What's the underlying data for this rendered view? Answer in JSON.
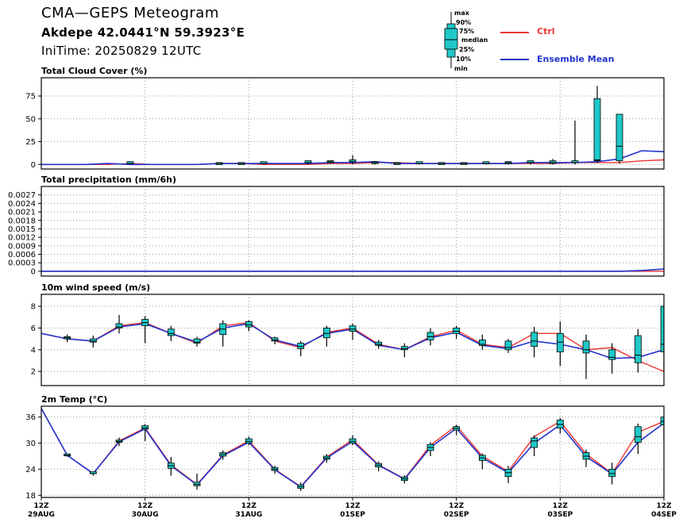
{
  "header": {
    "title": "CMA—GEPS Meteogram",
    "location": "Akdepe 42.0441°N 59.3923°E",
    "init_time": "IniTime: 20250829 12UTC"
  },
  "legend": {
    "box_labels": [
      "max",
      "90%",
      "75%",
      "median",
      "25%",
      "10%",
      "min"
    ],
    "series": [
      {
        "name": "Ctrl",
        "color": "#ee3333"
      },
      {
        "name": "Ensemble Mean",
        "color": "#2233cc"
      }
    ]
  },
  "colors": {
    "box_fill": "#20c8c8",
    "ctrl": "#ee3333",
    "mean": "#2233cc",
    "grid": "#999999"
  },
  "chart_data": [
    {
      "type": "line",
      "title": "Total Cloud Cover (%)",
      "xlabel": "",
      "ylabel": "",
      "ylim": [
        -5,
        95
      ],
      "yticks": [
        0,
        25,
        50,
        75
      ],
      "ytick_labels": [
        "0",
        "25",
        "50",
        "75"
      ],
      "grid": true,
      "ctrl": [
        0,
        0,
        0,
        0,
        1,
        0,
        0,
        0,
        1,
        1,
        0,
        0,
        0,
        1,
        1,
        2,
        2,
        1,
        1,
        1,
        1,
        1,
        1,
        1,
        2,
        2,
        2,
        4,
        5
      ],
      "mean": [
        0,
        0,
        0,
        1,
        0,
        0,
        0,
        0,
        1,
        1,
        1,
        1,
        1,
        2,
        2,
        3,
        1,
        1,
        1,
        1,
        1,
        1,
        2,
        2,
        2,
        3,
        6,
        15,
        14
      ],
      "boxes": [
        [
          4,
          0,
          0,
          1,
          1,
          2,
          2
        ],
        [
          8,
          0,
          0,
          0,
          1,
          1,
          2
        ],
        [
          9,
          0,
          0,
          0,
          1,
          1,
          2
        ],
        [
          10,
          0,
          0,
          1,
          1,
          2,
          2
        ],
        [
          12,
          0,
          1,
          1,
          2,
          3,
          4
        ],
        [
          13,
          1,
          1,
          2,
          3,
          3,
          4
        ],
        [
          14,
          0,
          1,
          2,
          3,
          4,
          10
        ],
        [
          15,
          0,
          1,
          1,
          2,
          2,
          3
        ],
        [
          16,
          0,
          0,
          0,
          1,
          1,
          2
        ],
        [
          17,
          0,
          0,
          1,
          1,
          2,
          3
        ],
        [
          18,
          0,
          0,
          0,
          1,
          1,
          2
        ],
        [
          19,
          0,
          0,
          0,
          1,
          1,
          2
        ],
        [
          20,
          0,
          0,
          1,
          1,
          2,
          3
        ],
        [
          21,
          0,
          0,
          1,
          2,
          2,
          3
        ],
        [
          22,
          0,
          0,
          1,
          2,
          3,
          4
        ],
        [
          23,
          0,
          1,
          1,
          2,
          4,
          6
        ],
        [
          24,
          0,
          0,
          1,
          2,
          3,
          48
        ],
        [
          25,
          2,
          3,
          4,
          5,
          72,
          86
        ],
        [
          26,
          1,
          2,
          4,
          20,
          55,
          55
        ]
      ]
    },
    {
      "type": "line",
      "title": "Total precipitation (mm/6h)",
      "xlabel": "",
      "ylabel": "",
      "ylim": [
        -0.00017,
        0.003
      ],
      "yticks": [
        0,
        0.0003,
        0.0006,
        0.0009,
        0.0012,
        0.0015,
        0.0018,
        0.0021,
        0.0024,
        0.0027
      ],
      "ytick_labels": [
        "0",
        "0.0003",
        "0.0006",
        "0.0009",
        "0.0012",
        "0.0015",
        "0.0018",
        "0.0021",
        "0.0024",
        "0.0027"
      ],
      "grid": true,
      "ctrl": [
        0,
        0,
        0,
        0,
        0,
        0,
        0,
        0,
        0,
        0,
        0,
        0,
        0,
        0,
        0,
        0,
        0,
        0,
        0,
        0,
        0,
        0,
        0,
        0,
        0,
        0,
        0,
        0,
        0
      ],
      "mean": [
        0,
        0,
        0,
        0,
        0,
        0,
        0,
        0,
        0,
        0,
        0,
        0,
        0,
        0,
        0,
        0,
        0,
        0,
        0,
        0,
        0,
        0,
        0,
        0,
        0,
        0,
        0,
        3e-05,
        8e-05
      ],
      "boxes": []
    },
    {
      "type": "line",
      "title": "10m wind speed (m/s)",
      "xlabel": "",
      "ylabel": "",
      "ylim": [
        0.7,
        9.1
      ],
      "yticks": [
        2,
        4,
        6,
        8
      ],
      "ytick_labels": [
        "2",
        "4",
        "6",
        "8"
      ],
      "grid": true,
      "ctrl": [
        5.5,
        5.0,
        4.8,
        6.2,
        6.5,
        5.5,
        4.6,
        6.2,
        6.5,
        4.8,
        4.2,
        5.6,
        6.0,
        4.5,
        4.0,
        5.2,
        5.8,
        4.5,
        4.2,
        5.5,
        5.5,
        4.0,
        4.2,
        3.0,
        2.0
      ],
      "mean": [
        5.5,
        5.0,
        4.8,
        6.1,
        6.4,
        5.5,
        4.7,
        6.0,
        6.4,
        4.9,
        4.3,
        5.5,
        5.9,
        4.4,
        4.0,
        5.1,
        5.6,
        4.4,
        4.1,
        4.8,
        4.5,
        4.0,
        3.2,
        3.3,
        4.0
      ],
      "boxes": [
        [
          1,
          4.7,
          4.9,
          5.0,
          5.1,
          5.2,
          5.4
        ],
        [
          2,
          4.2,
          4.5,
          4.7,
          4.8,
          5.0,
          5.3
        ],
        [
          3,
          5.5,
          5.8,
          6.0,
          6.1,
          6.4,
          7.2
        ],
        [
          4,
          4.6,
          5.9,
          6.2,
          6.5,
          6.8,
          7.1
        ],
        [
          5,
          4.8,
          5.1,
          5.3,
          5.5,
          5.9,
          6.2
        ],
        [
          6,
          4.3,
          4.5,
          4.6,
          4.7,
          5.0,
          5.2
        ],
        [
          7,
          4.3,
          5.0,
          5.4,
          5.9,
          6.4,
          6.7
        ],
        [
          8,
          5.7,
          5.9,
          6.1,
          6.3,
          6.6,
          6.7
        ],
        [
          9,
          4.5,
          4.7,
          4.8,
          4.9,
          5.1,
          5.2
        ],
        [
          10,
          3.4,
          3.9,
          4.1,
          4.3,
          4.6,
          4.8
        ],
        [
          11,
          4.3,
          4.9,
          5.1,
          5.5,
          6.0,
          6.2
        ],
        [
          12,
          4.9,
          5.5,
          5.7,
          5.9,
          6.2,
          6.4
        ],
        [
          13,
          4.1,
          4.3,
          4.4,
          4.5,
          4.7,
          4.9
        ],
        [
          14,
          3.3,
          3.8,
          4.0,
          4.1,
          4.3,
          4.6
        ],
        [
          15,
          4.4,
          4.7,
          4.9,
          5.2,
          5.6,
          6.0
        ],
        [
          16,
          5.0,
          5.3,
          5.5,
          5.7,
          6.0,
          6.2
        ],
        [
          17,
          4.0,
          4.2,
          4.4,
          4.5,
          4.9,
          5.4
        ],
        [
          18,
          3.7,
          3.9,
          4.0,
          4.2,
          4.8,
          5.0
        ],
        [
          19,
          3.3,
          3.7,
          4.3,
          4.8,
          5.6,
          6.1
        ],
        [
          20,
          2.5,
          3.0,
          3.8,
          4.7,
          5.5,
          6.6
        ],
        [
          21,
          1.3,
          3.0,
          3.7,
          4.0,
          4.8,
          5.4
        ],
        [
          22,
          1.8,
          2.6,
          3.1,
          3.3,
          4.0,
          4.6
        ],
        [
          23,
          1.9,
          2.3,
          2.8,
          3.5,
          5.3,
          5.9
        ],
        [
          24,
          2.0,
          3.4,
          3.8,
          4.5,
          8.0,
          8.2
        ]
      ]
    },
    {
      "type": "line",
      "title": "2m Temp (°C)",
      "xlabel": "",
      "ylabel": "",
      "ylim": [
        17.5,
        38.5
      ],
      "yticks": [
        18,
        24,
        30,
        36
      ],
      "ytick_labels": [
        "18",
        "24",
        "30",
        "36"
      ],
      "grid": true,
      "x_labels": [
        [
          "12Z",
          "29AUG"
        ],
        [
          "12Z",
          "30AUG"
        ],
        [
          "12Z",
          "31AUG"
        ],
        [
          "12Z",
          "01SEP"
        ],
        [
          "12Z",
          "02SEP"
        ],
        [
          "12Z",
          "03SEP"
        ],
        [
          "12Z",
          "04SEP"
        ]
      ],
      "ctrl": [
        38,
        27.2,
        23,
        30.5,
        33.5,
        25,
        20.5,
        27.3,
        30.5,
        24,
        20,
        26.8,
        30.8,
        25,
        21.8,
        29.5,
        34,
        27,
        23.5,
        31.5,
        35,
        27.5,
        23,
        32.5,
        35
      ],
      "mean": [
        38,
        27.2,
        23,
        30.3,
        33.3,
        24.8,
        20.4,
        27.1,
        30.2,
        23.9,
        19.9,
        26.6,
        30.4,
        24.9,
        21.7,
        29.0,
        33.4,
        26.6,
        23.2,
        30.0,
        34.2,
        26.9,
        22.9,
        30.2,
        34.6
      ],
      "boxes": [
        [
          1,
          26.9,
          27.0,
          27.1,
          27.2,
          27.3,
          27.4
        ],
        [
          2,
          22.5,
          22.7,
          22.9,
          23.0,
          23.2,
          23.4
        ],
        [
          3,
          29.3,
          29.9,
          30.2,
          30.4,
          30.7,
          31.3
        ],
        [
          4,
          30.5,
          32.8,
          33.2,
          33.5,
          34.0,
          34.4
        ],
        [
          5,
          22.5,
          23.6,
          24.2,
          24.8,
          25.4,
          26.8
        ],
        [
          6,
          19.3,
          19.8,
          20.2,
          20.5,
          21.0,
          23.0
        ],
        [
          7,
          26.2,
          26.6,
          27.0,
          27.4,
          27.8,
          28.3
        ],
        [
          8,
          29.5,
          29.7,
          30.0,
          30.4,
          31.0,
          31.5
        ],
        [
          9,
          23.0,
          23.3,
          23.7,
          24.0,
          24.4,
          24.8
        ],
        [
          10,
          19.0,
          19.3,
          19.6,
          20.0,
          20.4,
          21.0
        ],
        [
          11,
          25.5,
          25.9,
          26.3,
          26.6,
          27.0,
          27.5
        ],
        [
          12,
          29.5,
          29.8,
          30.0,
          30.4,
          31.0,
          31.8
        ],
        [
          13,
          23.5,
          24.0,
          24.5,
          24.9,
          25.3,
          25.8
        ],
        [
          14,
          20.7,
          21.0,
          21.4,
          21.8,
          22.2,
          22.6
        ],
        [
          15,
          27.0,
          27.6,
          28.3,
          29.0,
          29.7,
          30.2
        ],
        [
          16,
          31.8,
          32.7,
          33.0,
          33.4,
          33.8,
          34.2
        ],
        [
          17,
          24.0,
          25.2,
          26.0,
          26.6,
          27.2,
          27.6
        ],
        [
          18,
          20.8,
          21.5,
          22.3,
          23.2,
          24.0,
          24.8
        ],
        [
          19,
          27.0,
          27.8,
          29.0,
          30.5,
          31.2,
          31.8
        ],
        [
          20,
          32.2,
          32.8,
          33.5,
          34.3,
          35.3,
          35.8
        ],
        [
          21,
          24.5,
          25.2,
          26.3,
          27.0,
          27.8,
          28.5
        ],
        [
          22,
          20.5,
          21.5,
          22.3,
          23.0,
          24.0,
          25.5
        ],
        [
          23,
          27.5,
          28.5,
          30.2,
          31.5,
          33.8,
          34.5
        ],
        [
          24,
          30.5,
          33.5,
          34.2,
          35.0,
          36.0,
          36.5
        ]
      ]
    }
  ]
}
